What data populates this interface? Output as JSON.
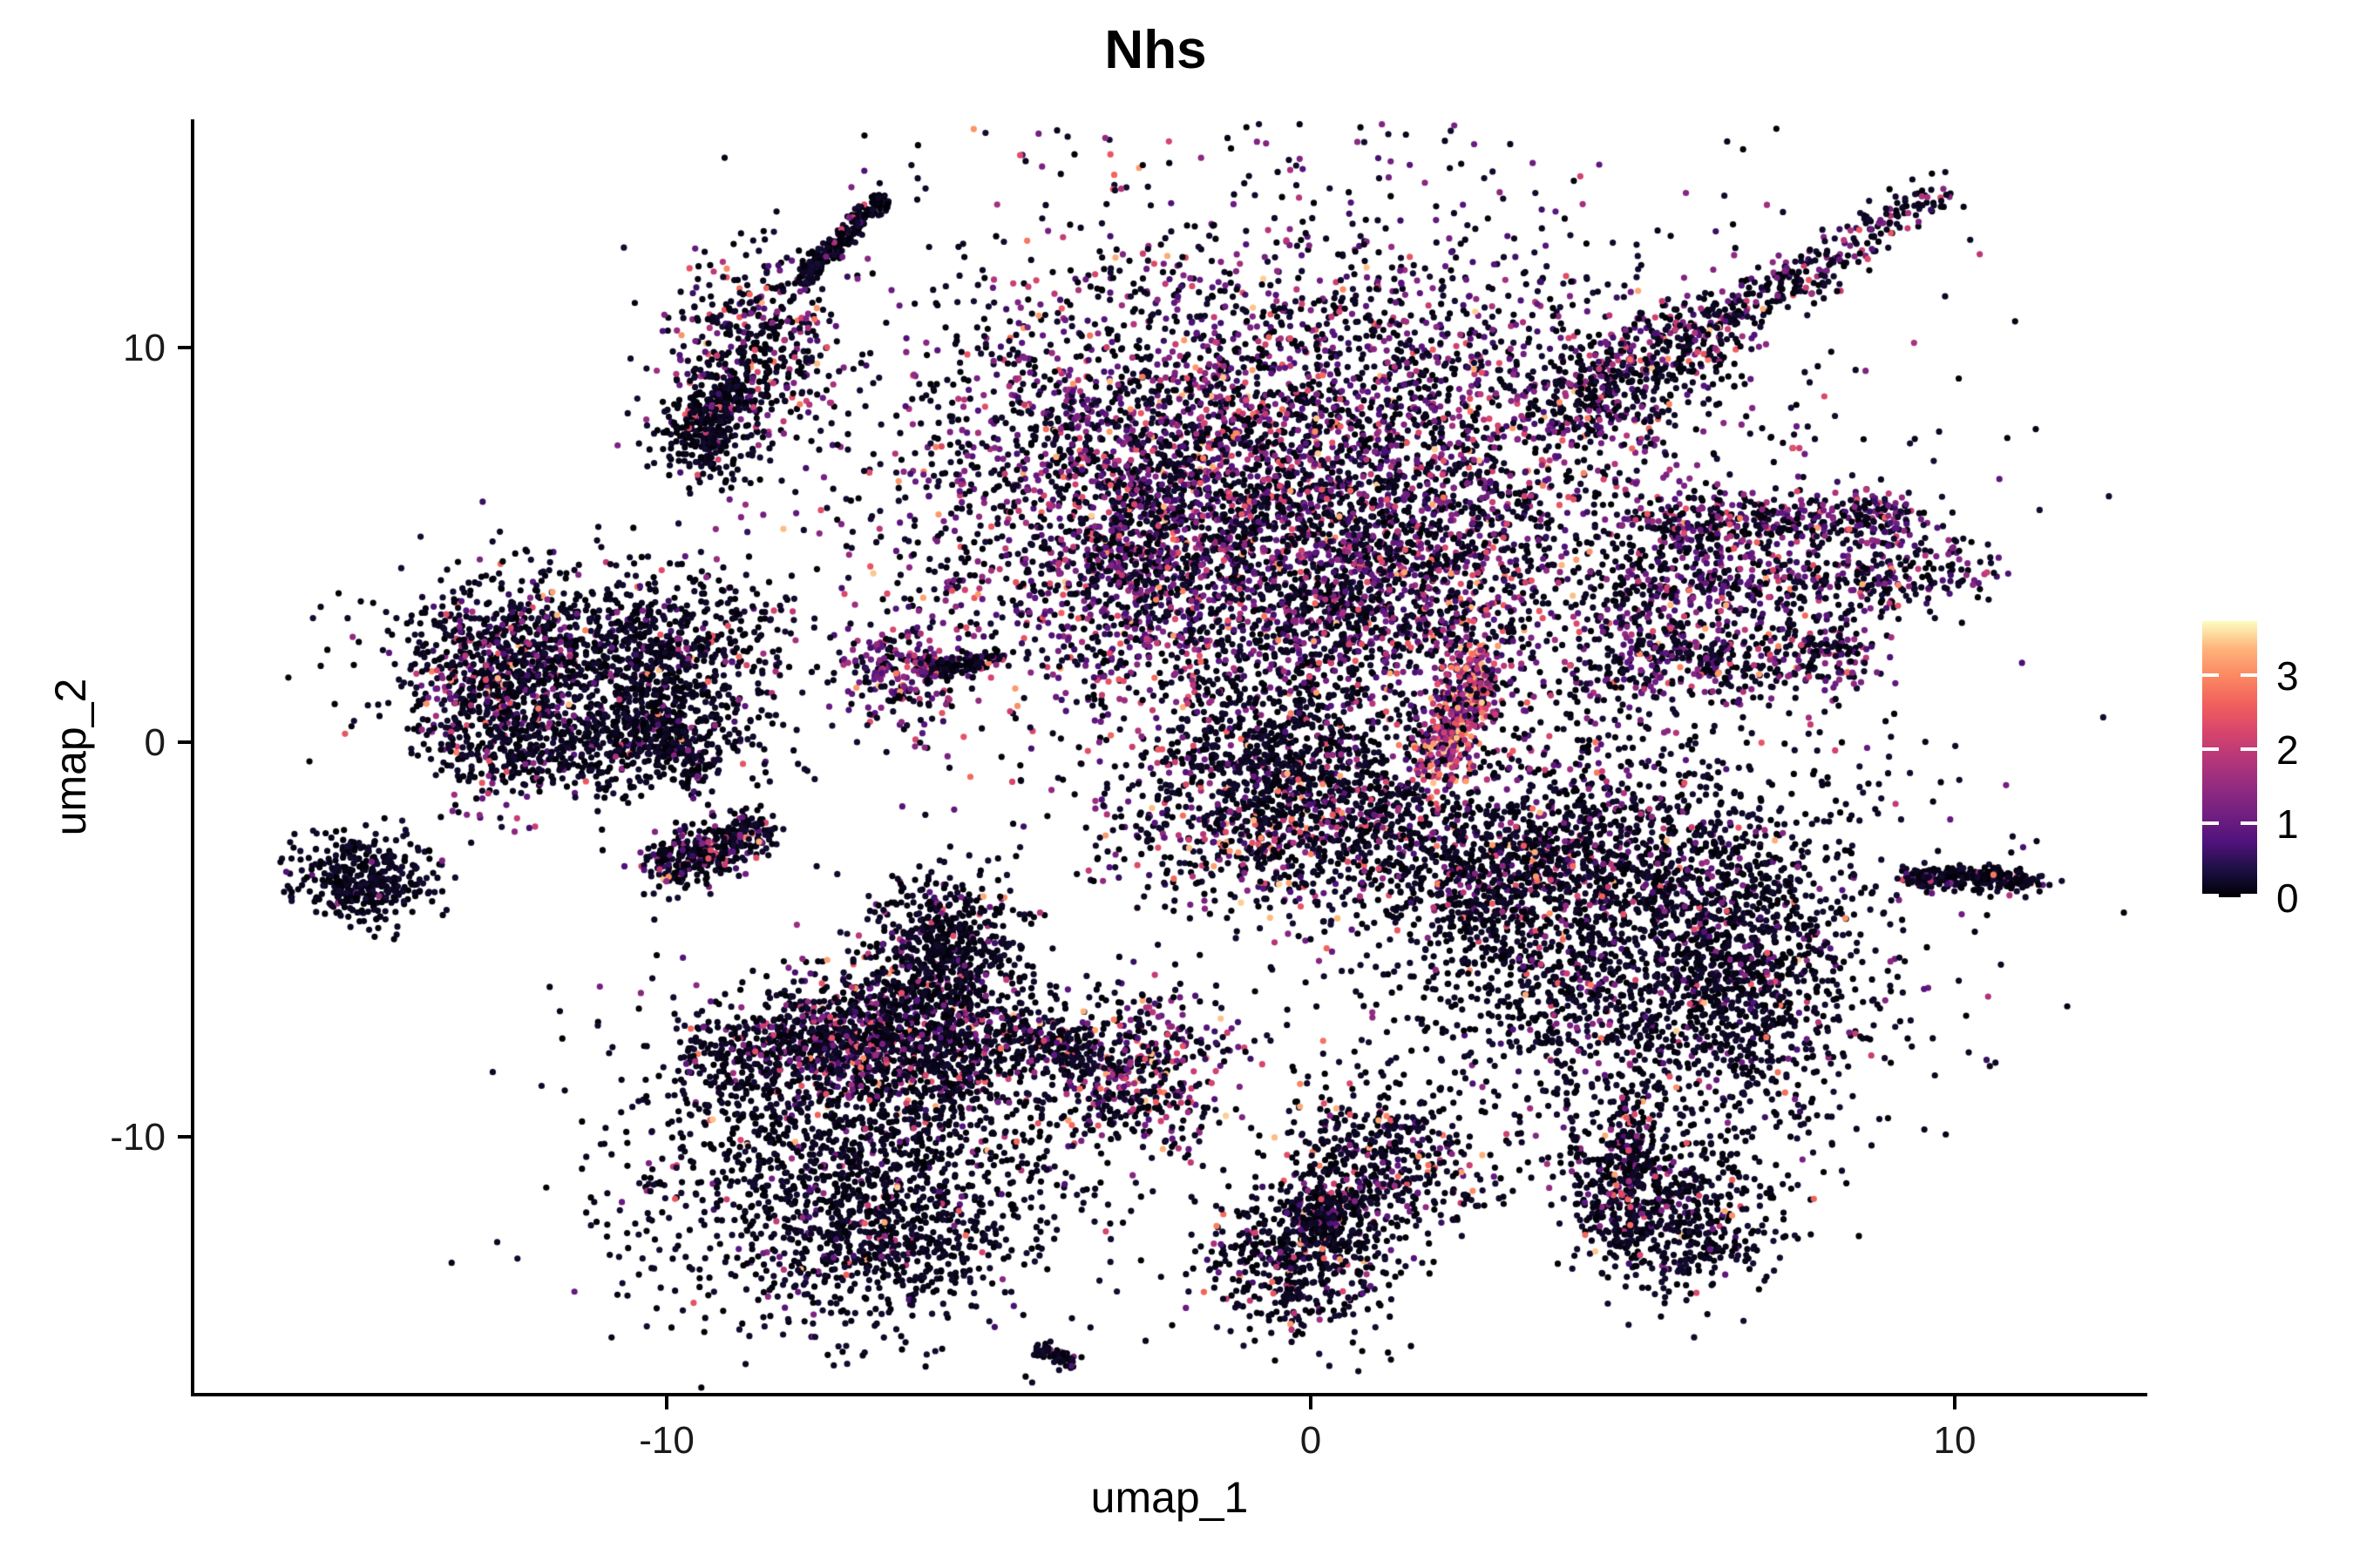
{
  "title": "Nhs",
  "axes": {
    "x_label": "umap_1",
    "y_label": "umap_2",
    "x_ticks": [
      {
        "label": "-10",
        "value": -10
      },
      {
        "label": "0",
        "value": 0
      },
      {
        "label": "10",
        "value": 10
      }
    ],
    "y_ticks": [
      {
        "label": "10",
        "value": 10
      },
      {
        "label": "0",
        "value": 0
      },
      {
        "label": "-10",
        "value": -10
      }
    ]
  },
  "legend": {
    "tick_labels": [
      {
        "label": "3",
        "value": 3
      },
      {
        "label": "2",
        "value": 2
      },
      {
        "label": "1",
        "value": 1
      },
      {
        "label": "0",
        "value": 0
      }
    ],
    "max_value": 3.73,
    "min_value": 0,
    "position": "right"
  },
  "colors": {
    "background": "#FFFFFF",
    "axis": "#000000",
    "magma_stops": [
      [
        0.0,
        "#000004"
      ],
      [
        0.1,
        "#1C1043"
      ],
      [
        0.2,
        "#51127C"
      ],
      [
        0.3,
        "#721F81"
      ],
      [
        0.4,
        "#932B80"
      ],
      [
        0.5,
        "#B63679"
      ],
      [
        0.6,
        "#D8456C"
      ],
      [
        0.7,
        "#F1605D"
      ],
      [
        0.8,
        "#FB8861"
      ],
      [
        0.9,
        "#FEB37B"
      ],
      [
        1.0,
        "#FCFDBF"
      ]
    ]
  },
  "chart_data": {
    "type": "scatter",
    "title": "Nhs",
    "xlabel": "umap_1",
    "ylabel": "umap_2",
    "xlim": [
      -17.3,
      13.0
    ],
    "ylim": [
      -16.4,
      15.8
    ],
    "grid": false,
    "colorbar": {
      "scale": "magma",
      "domain": [
        0,
        3.73
      ],
      "ticks": [
        0,
        1,
        2,
        3
      ]
    },
    "point_radius_px": 3.6,
    "expression_bins": [
      [
        0,
        0.28
      ],
      [
        0.55,
        1.5
      ],
      [
        1.55,
        2.55
      ],
      [
        2.6,
        3.5
      ]
    ],
    "clusters": [
      {
        "name": "comet-streak",
        "kind": "seg",
        "x1": -6.64,
        "y1": 13.79,
        "x2": -7.94,
        "y2": 11.67,
        "sx": 0.07,
        "sy": 0.12,
        "n": 300,
        "expr": [
          0.96,
          0.03,
          0.01,
          0
        ]
      },
      {
        "name": "comet-blob",
        "kind": "blob",
        "cx": -8.65,
        "cy": 9.97,
        "sx": 0.61,
        "sy": 1.21,
        "n": 450,
        "expr": [
          0.72,
          0.15,
          0.09,
          0.04
        ]
      },
      {
        "name": "comet-bridge",
        "kind": "seg",
        "x1": -8.9,
        "y1": 9.0,
        "x2": -9.4,
        "y2": 8.2,
        "sx": 0.15,
        "sy": 0.2,
        "n": 80,
        "expr": [
          0.9,
          0.06,
          0.03,
          0.01
        ]
      },
      {
        "name": "comet-tail-blob",
        "kind": "blob",
        "cx": -9.42,
        "cy": 7.81,
        "sx": 0.38,
        "sy": 0.66,
        "n": 260,
        "expr": [
          0.93,
          0.04,
          0.025,
          0.005
        ]
      },
      {
        "name": "octopus-main",
        "kind": "blob",
        "cx": -0.19,
        "cy": 6.33,
        "sx": 3.11,
        "sy": 3.31,
        "n": 5200,
        "expr": [
          0.55,
          0.3,
          0.12,
          0.03
        ]
      },
      {
        "name": "octopus-left-lobe",
        "kind": "blob",
        "cx": -2.76,
        "cy": 5.56,
        "sx": 0.95,
        "sy": 1.99,
        "n": 700,
        "expr": [
          0.6,
          0.28,
          0.1,
          0.02
        ]
      },
      {
        "name": "octopus-hook",
        "kind": "seg",
        "x1": 4.01,
        "y1": 8.43,
        "x2": 6.58,
        "y2": 10.85,
        "sx": 0.34,
        "sy": 0.55,
        "n": 450,
        "expr": [
          0.7,
          0.2,
          0.08,
          0.02
        ]
      },
      {
        "name": "octopus-chain",
        "kind": "seg",
        "x1": 6.58,
        "y1": 10.85,
        "x2": 9.82,
        "y2": 13.94,
        "sx": 0.19,
        "sy": 0.31,
        "n": 260,
        "expr": [
          0.78,
          0.15,
          0.06,
          0.01
        ]
      },
      {
        "name": "octopus-right-arm",
        "kind": "seg",
        "x1": 5.29,
        "y1": 5.45,
        "x2": 9.42,
        "y2": 5.82,
        "sx": 0.22,
        "sy": 0.35,
        "n": 420,
        "expr": [
          0.55,
          0.33,
          0.1,
          0.02
        ]
      },
      {
        "name": "octopus-fan-upper",
        "kind": "seg",
        "x1": 4.82,
        "y1": 3.79,
        "x2": 10.16,
        "y2": 4.46,
        "sx": 0.3,
        "sy": 0.49,
        "n": 520,
        "expr": [
          0.6,
          0.3,
          0.08,
          0.02
        ]
      },
      {
        "name": "octopus-fan-lower",
        "kind": "seg",
        "x1": 4.41,
        "y1": 2.03,
        "x2": 8.61,
        "y2": 2.36,
        "sx": 0.34,
        "sy": 0.55,
        "n": 480,
        "expr": [
          0.62,
          0.28,
          0.08,
          0.02
        ]
      },
      {
        "name": "octopus-bottom-bridge",
        "kind": "blob",
        "cx": 0.76,
        "cy": 3.57,
        "sx": 1.22,
        "sy": 1.32,
        "n": 600,
        "expr": [
          0.7,
          0.2,
          0.08,
          0.02
        ]
      },
      {
        "name": "octopus-halo",
        "kind": "blob",
        "cx": 0.22,
        "cy": 6.44,
        "sx": 4.47,
        "sy": 4.85,
        "n": 700,
        "expr": [
          0.8,
          0.15,
          0.04,
          0.01
        ]
      },
      {
        "name": "hot-streak",
        "kind": "seg",
        "x1": 2.65,
        "y1": 2.14,
        "x2": 1.91,
        "y2": -0.73,
        "sx": 0.22,
        "sy": 0.35,
        "n": 430,
        "expr": [
          0.18,
          0.25,
          0.35,
          0.22
        ]
      },
      {
        "name": "knob-cluster",
        "kind": "blob",
        "cx": -6.39,
        "cy": 1.76,
        "sx": 0.41,
        "sy": 0.57,
        "n": 200,
        "expr": [
          0.45,
          0.38,
          0.14,
          0.03
        ]
      },
      {
        "name": "knob-streak",
        "kind": "seg",
        "x1": -6.01,
        "y1": 1.81,
        "x2": -4.86,
        "y2": 2.1,
        "sx": 0.09,
        "sy": 0.15,
        "n": 120,
        "expr": [
          0.85,
          0.09,
          0.05,
          0.01
        ]
      },
      {
        "name": "crab-top",
        "kind": "blob",
        "cx": -11.29,
        "cy": 2.36,
        "sx": 1.62,
        "sy": 0.99,
        "n": 800,
        "expr": [
          0.88,
          0.08,
          0.03,
          0.01
        ]
      },
      {
        "name": "crab-left-edge",
        "kind": "blob",
        "cx": -12.64,
        "cy": 1.37,
        "sx": 0.61,
        "sy": 1.32,
        "n": 550,
        "expr": [
          0.72,
          0.17,
          0.08,
          0.03
        ]
      },
      {
        "name": "crab-right",
        "kind": "blob",
        "cx": -10.07,
        "cy": 1.37,
        "sx": 0.74,
        "sy": 1.21,
        "n": 550,
        "expr": [
          0.9,
          0.07,
          0.02,
          0.01
        ]
      },
      {
        "name": "crab-bottom",
        "kind": "blob",
        "cx": -11.42,
        "cy": -0.18,
        "sx": 1.22,
        "sy": 0.66,
        "n": 450,
        "expr": [
          0.93,
          0.05,
          0.015,
          0.005
        ]
      },
      {
        "name": "crab-tail",
        "kind": "seg",
        "x1": -10.0,
        "y1": 0.6,
        "x2": -9.53,
        "y2": -0.95,
        "sx": 0.14,
        "sy": 0.22,
        "n": 120,
        "expr": [
          0.85,
          0.1,
          0.04,
          0.01
        ]
      },
      {
        "name": "far-left-blob",
        "kind": "blob",
        "cx": -14.7,
        "cy": -3.44,
        "sx": 0.57,
        "sy": 0.55,
        "n": 380,
        "expr": [
          0.985,
          0.01,
          0.005,
          0
        ]
      },
      {
        "name": "slanted-small",
        "kind": "seg",
        "x1": -10.14,
        "y1": -3.27,
        "x2": -8.51,
        "y2": -2.16,
        "sx": 0.22,
        "sy": 0.35,
        "n": 360,
        "expr": [
          0.75,
          0.15,
          0.07,
          0.03
        ]
      },
      {
        "name": "dancer-head",
        "kind": "blob",
        "cx": -5.67,
        "cy": -4.92,
        "sx": 0.57,
        "sy": 0.84,
        "n": 420,
        "expr": [
          0.9,
          0.07,
          0.025,
          0.005
        ]
      },
      {
        "name": "dancer-torso",
        "kind": "blob",
        "cx": -5.74,
        "cy": -7.24,
        "sx": 0.68,
        "sy": 1.32,
        "n": 650,
        "expr": [
          0.85,
          0.1,
          0.04,
          0.01
        ]
      },
      {
        "name": "dancer-left-arm",
        "kind": "seg",
        "x1": -9.39,
        "y1": -7.9,
        "x2": -6.68,
        "y2": -7.35,
        "sx": 0.38,
        "sy": 0.62,
        "n": 500,
        "expr": [
          0.83,
          0.1,
          0.05,
          0.02
        ]
      },
      {
        "name": "dancer-shoulder",
        "kind": "blob",
        "cx": -6.96,
        "cy": -7.46,
        "sx": 0.61,
        "sy": 0.99,
        "n": 350,
        "expr": [
          0.55,
          0.25,
          0.13,
          0.07
        ]
      },
      {
        "name": "dancer-right-arm",
        "kind": "seg",
        "x1": -5.06,
        "y1": -7.24,
        "x2": -3.44,
        "y2": -7.9,
        "sx": 0.27,
        "sy": 0.44,
        "n": 220,
        "expr": [
          0.8,
          0.12,
          0.06,
          0.02
        ]
      },
      {
        "name": "dancer-fist",
        "kind": "blob",
        "cx": -2.63,
        "cy": -8.45,
        "sx": 0.7,
        "sy": 1.06,
        "n": 480,
        "expr": [
          0.6,
          0.22,
          0.12,
          0.06
        ]
      },
      {
        "name": "dancer-lower-mass",
        "kind": "blob",
        "cx": -7.02,
        "cy": -10.65,
        "sx": 1.89,
        "sy": 2.1,
        "n": 1700,
        "expr": [
          0.92,
          0.05,
          0.02,
          0.01
        ]
      },
      {
        "name": "dancer-bottom-tip",
        "kind": "blob",
        "cx": -6.41,
        "cy": -12.75,
        "sx": 0.81,
        "sy": 0.77,
        "n": 280,
        "expr": [
          0.9,
          0.06,
          0.03,
          0.01
        ]
      },
      {
        "name": "center-upper",
        "kind": "blob",
        "cx": -0.46,
        "cy": -0.18,
        "sx": 1.01,
        "sy": 0.99,
        "n": 500,
        "expr": [
          0.88,
          0.07,
          0.03,
          0.02
        ]
      },
      {
        "name": "center-lower",
        "kind": "blob",
        "cx": -0.73,
        "cy": -2.16,
        "sx": 1.15,
        "sy": 1.1,
        "n": 700,
        "expr": [
          0.68,
          0.15,
          0.1,
          0.07
        ]
      },
      {
        "name": "center-right-spur",
        "kind": "blob",
        "cx": 1.03,
        "cy": -1.94,
        "sx": 0.61,
        "sy": 0.88,
        "n": 220,
        "expr": [
          0.85,
          0.08,
          0.04,
          0.03
        ]
      },
      {
        "name": "round-main",
        "kind": "blob",
        "cx": 5.09,
        "cy": -5.25,
        "sx": 2.03,
        "sy": 2.65,
        "n": 2500,
        "expr": [
          0.88,
          0.08,
          0.03,
          0.01
        ]
      },
      {
        "name": "round-top-edge",
        "kind": "blob",
        "cx": 4.01,
        "cy": -3.04,
        "sx": 1.22,
        "sy": 0.77,
        "n": 400,
        "expr": [
          0.75,
          0.15,
          0.07,
          0.03
        ]
      },
      {
        "name": "round-left-wing",
        "kind": "seg",
        "x1": 1.84,
        "y1": -4.59,
        "x2": 3.46,
        "y2": -3.49,
        "sx": 0.41,
        "sy": 0.66,
        "n": 200,
        "expr": [
          0.85,
          0.1,
          0.04,
          0.01
        ]
      },
      {
        "name": "round-right-edge",
        "kind": "blob",
        "cx": 6.85,
        "cy": -5.91,
        "sx": 0.61,
        "sy": 1.76,
        "n": 450,
        "expr": [
          0.9,
          0.07,
          0.02,
          0.01
        ]
      },
      {
        "name": "far-right-streak",
        "kind": "seg",
        "x1": 9.28,
        "y1": -3.37,
        "x2": 11.31,
        "y2": -3.53,
        "sx": 0.09,
        "sy": 0.15,
        "n": 280,
        "expr": [
          0.93,
          0.04,
          0.02,
          0.01
        ]
      },
      {
        "name": "bottom-s-top",
        "kind": "blob",
        "cx": 1.16,
        "cy": -10.54,
        "sx": 0.74,
        "sy": 0.99,
        "n": 450,
        "expr": [
          0.82,
          0.1,
          0.05,
          0.03
        ]
      },
      {
        "name": "bottom-s-neck",
        "kind": "seg",
        "x1": 0.55,
        "y1": -11.32,
        "x2": -0.05,
        "y2": -12.31,
        "sx": 0.24,
        "sy": 0.4,
        "n": 180,
        "expr": [
          0.85,
          0.1,
          0.04,
          0.01
        ]
      },
      {
        "name": "bottom-s-bottom",
        "kind": "blob",
        "cx": -0.05,
        "cy": -13.08,
        "sx": 0.74,
        "sy": 1.06,
        "n": 550,
        "expr": [
          0.88,
          0.07,
          0.03,
          0.02
        ]
      },
      {
        "name": "bottomright-stem",
        "kind": "seg",
        "x1": 4.84,
        "y1": -9.18,
        "x2": 4.98,
        "y2": -10.54,
        "sx": 0.13,
        "sy": 0.22,
        "n": 90,
        "expr": [
          0.85,
          0.1,
          0.04,
          0.01
        ]
      },
      {
        "name": "bottomright-left-lobe",
        "kind": "blob",
        "cx": 4.84,
        "cy": -11.21,
        "sx": 0.41,
        "sy": 0.77,
        "n": 230,
        "expr": [
          0.8,
          0.12,
          0.06,
          0.02
        ]
      },
      {
        "name": "bottomright-right-lobe",
        "kind": "blob",
        "cx": 5.7,
        "cy": -12.09,
        "sx": 0.74,
        "sy": 0.88,
        "n": 480,
        "expr": [
          0.88,
          0.08,
          0.03,
          0.01
        ]
      },
      {
        "name": "tiny-streak",
        "kind": "seg",
        "x1": -4.22,
        "y1": -15.35,
        "x2": -3.68,
        "y2": -15.66,
        "sx": 0.07,
        "sy": 0.11,
        "n": 60,
        "expr": [
          0.92,
          0.05,
          0.02,
          0.01
        ]
      },
      {
        "name": "scatter-mid-left",
        "kind": "blob",
        "cx": -4.79,
        "cy": 6.44,
        "sx": 1.08,
        "sy": 1.76,
        "n": 60,
        "expr": [
          0.85,
          0.1,
          0.04,
          0.01
        ]
      },
      {
        "name": "scatter-below-center",
        "kind": "blob",
        "cx": 2.52,
        "cy": -3.04,
        "sx": 0.81,
        "sy": 1.32,
        "n": 120,
        "expr": [
          0.8,
          0.12,
          0.05,
          0.03
        ]
      },
      {
        "name": "scatter-above-round",
        "kind": "blob",
        "cx": 3.06,
        "cy": -1.06,
        "sx": 1.0,
        "sy": 1.0,
        "n": 90,
        "expr": [
          0.6,
          0.2,
          0.12,
          0.08
        ]
      }
    ]
  }
}
